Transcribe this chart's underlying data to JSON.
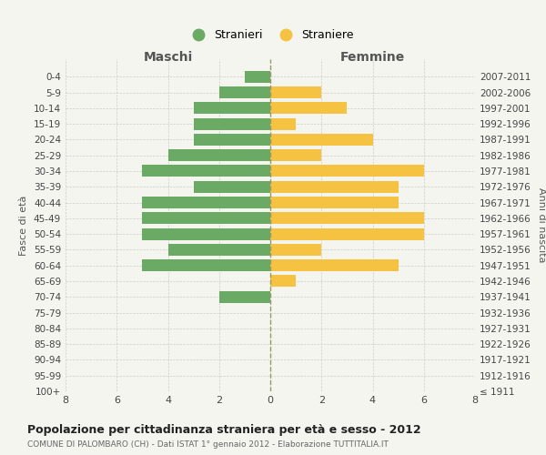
{
  "age_groups": [
    "0-4",
    "5-9",
    "10-14",
    "15-19",
    "20-24",
    "25-29",
    "30-34",
    "35-39",
    "40-44",
    "45-49",
    "50-54",
    "55-59",
    "60-64",
    "65-69",
    "70-74",
    "75-79",
    "80-84",
    "85-89",
    "90-94",
    "95-99",
    "100+"
  ],
  "birth_years": [
    "2007-2011",
    "2002-2006",
    "1997-2001",
    "1992-1996",
    "1987-1991",
    "1982-1986",
    "1977-1981",
    "1972-1976",
    "1967-1971",
    "1962-1966",
    "1957-1961",
    "1952-1956",
    "1947-1951",
    "1942-1946",
    "1937-1941",
    "1932-1936",
    "1927-1931",
    "1922-1926",
    "1917-1921",
    "1912-1916",
    "≤ 1911"
  ],
  "maschi": [
    1,
    2,
    3,
    3,
    3,
    4,
    5,
    3,
    5,
    5,
    5,
    4,
    5,
    0,
    2,
    0,
    0,
    0,
    0,
    0,
    0
  ],
  "femmine": [
    0,
    2,
    3,
    1,
    4,
    2,
    6,
    5,
    5,
    6,
    6,
    2,
    5,
    1,
    0,
    0,
    0,
    0,
    0,
    0,
    0
  ],
  "color_maschi": "#6aaa64",
  "color_femmine": "#f5c242",
  "title": "Popolazione per cittadinanza straniera per età e sesso - 2012",
  "subtitle": "COMUNE DI PALOMBARO (CH) - Dati ISTAT 1° gennaio 2012 - Elaborazione TUTTITALIA.IT",
  "xlabel_left": "Maschi",
  "xlabel_right": "Femmine",
  "ylabel_left": "Fasce di età",
  "ylabel_right": "Anni di nascita",
  "legend_maschi": "Stranieri",
  "legend_femmine": "Straniere",
  "xlim": 8,
  "background_color": "#f5f5f0",
  "grid_color": "#cccccc",
  "center_line_color": "#999966",
  "bar_height": 0.75
}
